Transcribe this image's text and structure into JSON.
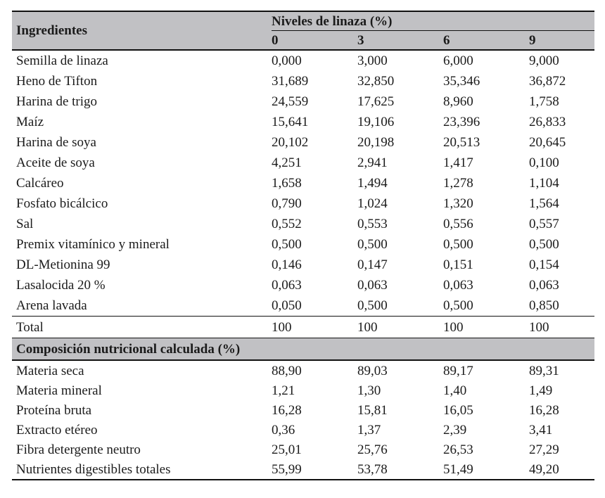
{
  "colors": {
    "header_bg": "#c1c1c4",
    "rule": "#111111",
    "text": "#1b1b1b",
    "page_bg": "#ffffff"
  },
  "table": {
    "col_header": "Ingredientes",
    "group_header": "Niveles de linaza (%)",
    "levels": [
      "0",
      "3",
      "6",
      "9"
    ],
    "ingredients": [
      {
        "label": "Semilla de linaza",
        "values": [
          "0,000",
          "3,000",
          "6,000",
          "9,000"
        ]
      },
      {
        "label": "Heno de Tifton",
        "values": [
          "31,689",
          "32,850",
          "35,346",
          "36,872"
        ]
      },
      {
        "label": "Harina de trigo",
        "values": [
          "24,559",
          "17,625",
          "8,960",
          "1,758"
        ]
      },
      {
        "label": "Maíz",
        "values": [
          "15,641",
          "19,106",
          "23,396",
          "26,833"
        ]
      },
      {
        "label": "Harina de soya",
        "values": [
          "20,102",
          "20,198",
          "20,513",
          "20,645"
        ]
      },
      {
        "label": "Aceite de soya",
        "values": [
          "4,251",
          "2,941",
          "1,417",
          "0,100"
        ]
      },
      {
        "label": "Calcáreo",
        "values": [
          "1,658",
          "1,494",
          "1,278",
          "1,104"
        ]
      },
      {
        "label": "Fosfato bicálcico",
        "values": [
          "0,790",
          "1,024",
          "1,320",
          "1,564"
        ]
      },
      {
        "label": "Sal",
        "values": [
          "0,552",
          "0,553",
          "0,556",
          "0,557"
        ]
      },
      {
        "label": "Premix vitamínico y mineral",
        "values": [
          "0,500",
          "0,500",
          "0,500",
          "0,500"
        ]
      },
      {
        "label": "DL-Metionina 99",
        "values": [
          "0,146",
          "0,147",
          "0,151",
          "0,154"
        ]
      },
      {
        "label": "Lasalocida 20 %",
        "values": [
          "0,063",
          "0,063",
          "0,063",
          "0,063"
        ]
      },
      {
        "label": "Arena lavada",
        "values": [
          "0,050",
          "0,500",
          "0,500",
          "0,850"
        ]
      }
    ],
    "total": {
      "label": "Total",
      "values": [
        "100",
        "100",
        "100",
        "100"
      ]
    },
    "section_header": "Composición nutricional calculada (%)",
    "nutrition": [
      {
        "label": "Materia seca",
        "values": [
          "88,90",
          "89,03",
          "89,17",
          "89,31"
        ]
      },
      {
        "label": "Materia mineral",
        "values": [
          "1,21",
          "1,30",
          "1,40",
          "1,49"
        ]
      },
      {
        "label": "Proteína bruta",
        "values": [
          "16,28",
          "15,81",
          "16,05",
          "16,28"
        ]
      },
      {
        "label": "Extracto etéreo",
        "values": [
          "0,36",
          "1,37",
          "2,39",
          "3,41"
        ]
      },
      {
        "label": "Fibra detergente neutro",
        "values": [
          "25,01",
          "25,76",
          "26,53",
          "27,29"
        ]
      },
      {
        "label": "Nutrientes digestibles totales",
        "values": [
          "55,99",
          "53,78",
          "51,49",
          "49,20"
        ]
      }
    ]
  }
}
